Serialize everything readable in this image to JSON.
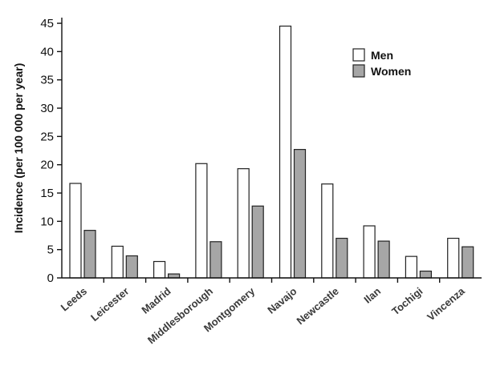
{
  "chart_data": {
    "type": "bar",
    "title": "",
    "xlabel": "",
    "ylabel": "Incidence (per 100 000 per year)",
    "ylim": [
      0,
      46
    ],
    "yticks": [
      0,
      5,
      10,
      15,
      20,
      25,
      30,
      35,
      40,
      45
    ],
    "categories": [
      "Leeds",
      "Leicester",
      "Madrid",
      "Middlesborough",
      "Montgomery",
      "Navajo",
      "Newcastle",
      "Ilan",
      "Tochigi",
      "Vincenza"
    ],
    "series": [
      {
        "name": "Men",
        "color": "#ffffff",
        "values": [
          16.7,
          5.6,
          2.9,
          20.2,
          19.3,
          44.5,
          16.6,
          9.2,
          3.8,
          7.0
        ]
      },
      {
        "name": "Women",
        "color": "#a6a6a6",
        "values": [
          8.4,
          3.9,
          0.7,
          6.4,
          12.7,
          22.7,
          7.0,
          6.5,
          1.2,
          5.5
        ]
      }
    ],
    "legend": {
      "position": "top-right"
    },
    "grid": false
  }
}
